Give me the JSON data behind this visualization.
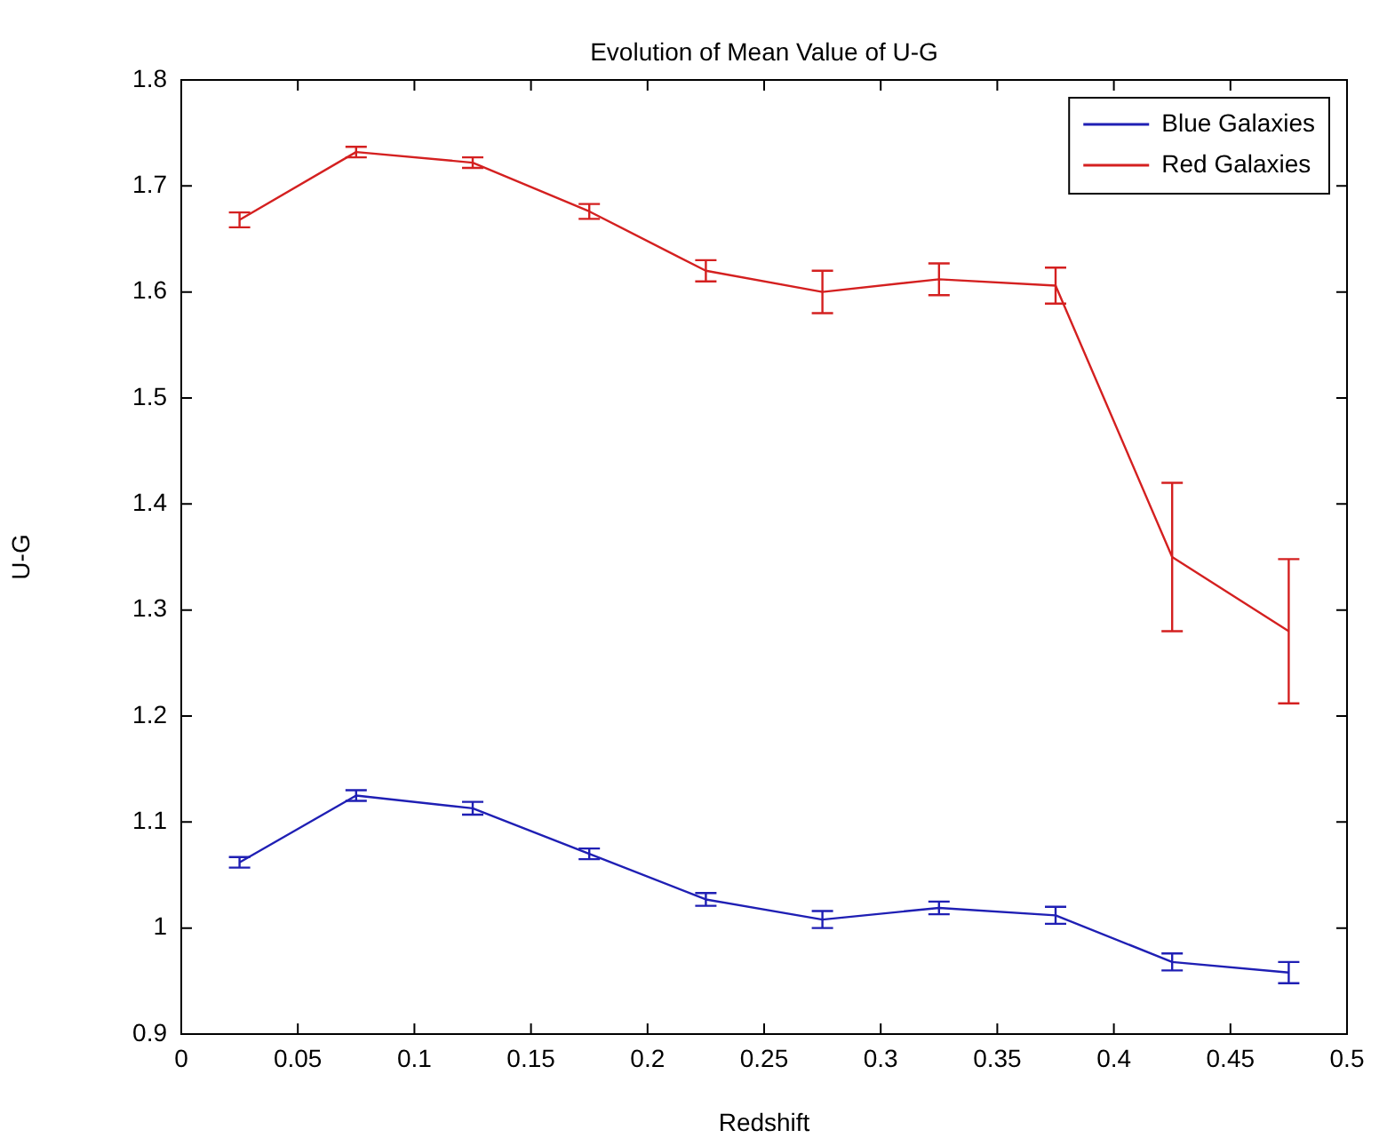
{
  "chart_data": {
    "type": "line",
    "title": "Evolution of Mean Value of U-G",
    "xlabel": "Redshift",
    "ylabel": "U-G",
    "x": [
      0.025,
      0.075,
      0.125,
      0.175,
      0.225,
      0.275,
      0.325,
      0.375,
      0.425,
      0.475
    ],
    "series": [
      {
        "name": "Blue Galaxies",
        "color": "#1f1fb4",
        "values": [
          1.062,
          1.125,
          1.113,
          1.07,
          1.027,
          1.008,
          1.019,
          1.012,
          0.968,
          0.958
        ],
        "errors": [
          0.005,
          0.005,
          0.006,
          0.005,
          0.006,
          0.008,
          0.006,
          0.008,
          0.008,
          0.01
        ]
      },
      {
        "name": "Red Galaxies",
        "color": "#d42020",
        "values": [
          1.668,
          1.732,
          1.722,
          1.676,
          1.62,
          1.6,
          1.612,
          1.606,
          1.35,
          1.28
        ],
        "errors": [
          0.007,
          0.005,
          0.005,
          0.007,
          0.01,
          0.02,
          0.015,
          0.017,
          0.07,
          0.068
        ]
      }
    ],
    "xlim": [
      0,
      0.5
    ],
    "xticks": [
      0,
      0.05,
      0.1,
      0.15,
      0.2,
      0.25,
      0.3,
      0.35,
      0.4,
      0.45,
      0.5
    ],
    "ylim": [
      0.9,
      1.8
    ],
    "yticks": [
      0.9,
      1,
      1.1,
      1.2,
      1.3,
      1.4,
      1.5,
      1.6,
      1.7,
      1.8
    ],
    "grid": false,
    "legend": "top right",
    "marker": "none",
    "line_style": "solid"
  }
}
